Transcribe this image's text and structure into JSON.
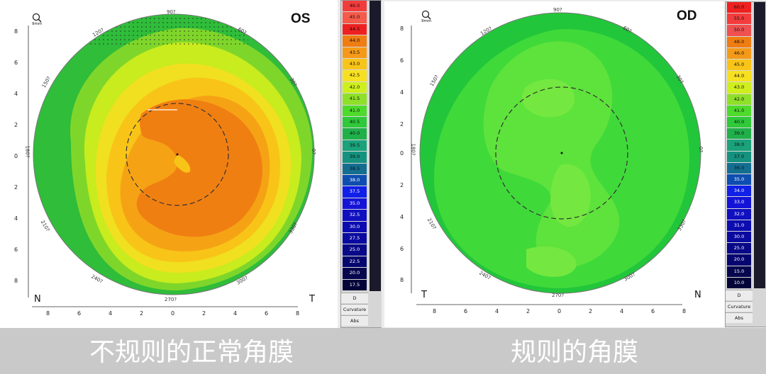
{
  "captions": {
    "left": "不规则的正常角膜",
    "right": "规则的角膜"
  },
  "left_map": {
    "eye": "OS",
    "scale": "9mm",
    "nasal": "N",
    "temporal": "T",
    "angles": [
      "90?",
      "60?",
      "30?",
      "0?",
      "330?",
      "300?",
      "270?",
      "240?",
      "210?",
      "180?",
      "150?",
      "120?"
    ],
    "y_ticks": [
      "8",
      "6",
      "4",
      "2",
      "0",
      "2",
      "4",
      "6",
      "8"
    ],
    "x_ticks": [
      "8",
      "6",
      "4",
      "2",
      "0",
      "2",
      "4",
      "6",
      "8"
    ],
    "colors": {
      "outer": "#2fbd3a",
      "ring1": "#7fd62a",
      "ring2": "#c8ec1e",
      "ring3": "#f0e020",
      "ring4": "#f9c418",
      "ring5": "#f5a315",
      "core": "#f07f12"
    }
  },
  "right_map": {
    "eye": "OD",
    "scale": "9mm",
    "nasal": "N",
    "temporal": "T",
    "angles": [
      "90?",
      "60?",
      "30?",
      "0?",
      "330?",
      "300?",
      "270?",
      "240?",
      "210?",
      "180?",
      "150?",
      "120?"
    ],
    "y_ticks": [
      "8",
      "6",
      "4",
      "2",
      "0",
      "2",
      "4",
      "6",
      "8"
    ],
    "x_ticks": [
      "8",
      "6",
      "4",
      "2",
      "0",
      "2",
      "4",
      "6",
      "8"
    ],
    "colors": {
      "outer": "#22c63a",
      "mid": "#3fd93a",
      "inner": "#5ee23c",
      "light": "#74e840"
    }
  },
  "left_legend": {
    "values": [
      "46.0",
      "45.0",
      "44.5",
      "44.0",
      "43.5",
      "43.0",
      "42.5",
      "42.0",
      "41.5",
      "41.0",
      "40.5",
      "40.0",
      "39.5",
      "39.0",
      "38.5",
      "38.0",
      "37.5",
      "35.0",
      "32.5",
      "30.0",
      "27.5",
      "25.0",
      "22.5",
      "20.0",
      "17.5"
    ],
    "colors": [
      "#f23c3c",
      "#f55a4a",
      "#f02020",
      "#f07d12",
      "#f59a18",
      "#f9c418",
      "#f6e020",
      "#cfee1e",
      "#8fe028",
      "#4edb2c",
      "#2fc93a",
      "#20b04a",
      "#1aa27a",
      "#14927f",
      "#136e90",
      "#0e4eb0",
      "#1020e8",
      "#1414d8",
      "#1010c0",
      "#0c0cb0",
      "#0a0aa0",
      "#080888",
      "#060670",
      "#06064e",
      "#040438"
    ],
    "unit": "D",
    "mode": "Curvature",
    "type": "Abs"
  },
  "right_legend": {
    "values": [
      "60.0",
      "55.0",
      "50.0",
      "48.0",
      "46.0",
      "45.0",
      "44.0",
      "43.0",
      "42.0",
      "41.0",
      "40.0",
      "39.0",
      "38.0",
      "37.0",
      "36.0",
      "35.0",
      "34.0",
      "33.0",
      "32.0",
      "31.0",
      "30.0",
      "25.0",
      "20.0",
      "15.0",
      "10.0"
    ],
    "colors": [
      "#f02020",
      "#f53c3c",
      "#f05050",
      "#f07d12",
      "#f59a18",
      "#f9c418",
      "#f6e020",
      "#cfee1e",
      "#8fe028",
      "#4edb2c",
      "#2fc93a",
      "#20b04a",
      "#1aa27a",
      "#14927f",
      "#136e90",
      "#0e4eb0",
      "#1020e8",
      "#1414d8",
      "#1010c0",
      "#0c0cb0",
      "#0a0aa0",
      "#080888",
      "#060670",
      "#06064e",
      "#040438"
    ],
    "unit": "D",
    "mode": "Curvature",
    "type": "Abs"
  }
}
